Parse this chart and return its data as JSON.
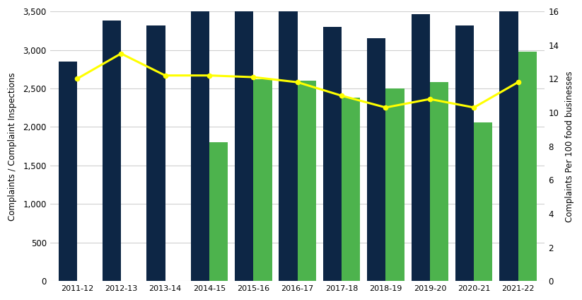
{
  "years": [
    "2011-12",
    "2012-13",
    "2013-14",
    "2014-15",
    "2015-16",
    "2016-17",
    "2017-18",
    "2018-19",
    "2019-20",
    "2020-21",
    "2021-22"
  ],
  "dark_blue_bars": [
    2850,
    3380,
    3320,
    3500,
    3500,
    3500,
    3300,
    3150,
    3460,
    3320,
    3500
  ],
  "green_bars": [
    0,
    0,
    0,
    1800,
    2620,
    2600,
    2380,
    2500,
    2580,
    2060,
    2980
  ],
  "line_values": [
    12.0,
    13.5,
    12.2,
    12.2,
    12.1,
    11.8,
    11.0,
    10.3,
    10.8,
    10.3,
    11.8
  ],
  "dark_blue_color": "#0d2645",
  "green_color": "#4db34d",
  "line_color": "#ffff00",
  "left_ylabel": "Complaints / Complaint Inspections",
  "right_ylabel": "Complaints Per 100 food businesses",
  "left_ylim": [
    0,
    3500
  ],
  "right_ylim": [
    0,
    16
  ],
  "left_yticks": [
    0,
    500,
    1000,
    1500,
    2000,
    2500,
    3000,
    3500
  ],
  "right_yticks": [
    0,
    2,
    4,
    6,
    8,
    10,
    12,
    14,
    16
  ],
  "background_color": "#ffffff",
  "grid_color": "#d0d0d0",
  "figsize": [
    8.23,
    4.24
  ],
  "dpi": 100
}
